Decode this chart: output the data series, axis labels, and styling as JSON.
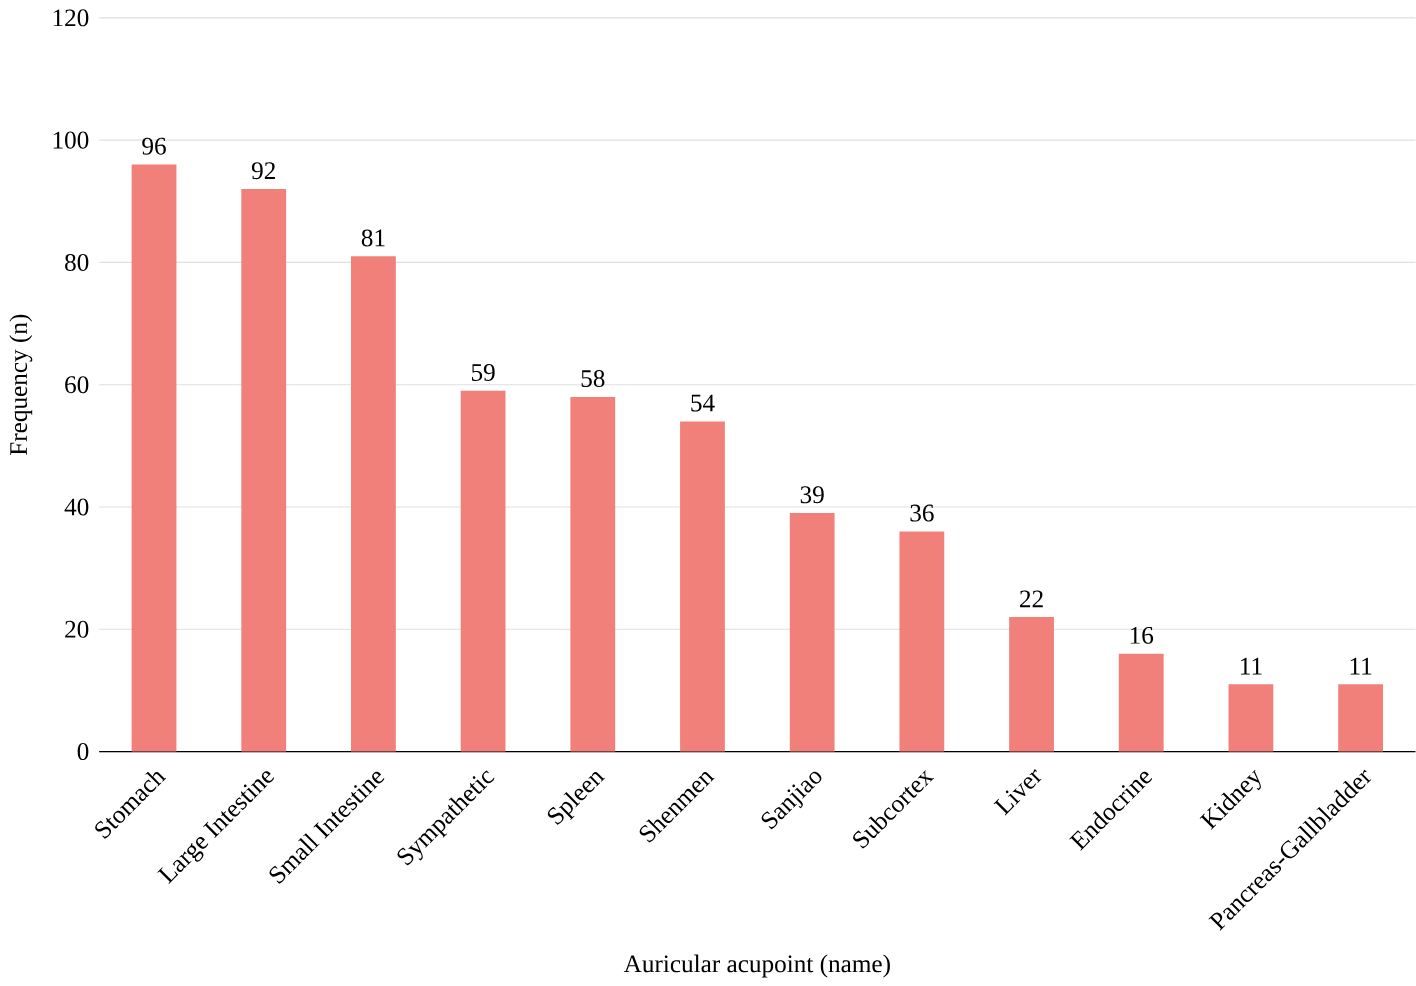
{
  "chart_data": {
    "type": "bar",
    "xlabel": "Auricular acupoint (name)",
    "ylabel": "Frequency (n)",
    "categories": [
      "Stomach",
      "Large Intestine",
      "Small Intestine",
      "Sympathetic",
      "Spleen",
      "Shenmen",
      "Sanjiao",
      "Subcortex",
      "Liver",
      "Endocrine",
      "Kidney",
      "Pancreas-Gallbladder"
    ],
    "values": [
      96,
      92,
      81,
      59,
      58,
      54,
      39,
      36,
      22,
      16,
      11,
      11
    ],
    "color": "#f2807a",
    "ylim": [
      0,
      120
    ],
    "yticks": [
      0,
      20,
      40,
      60,
      80,
      100,
      120
    ],
    "grid": "y",
    "data_labels": true
  }
}
